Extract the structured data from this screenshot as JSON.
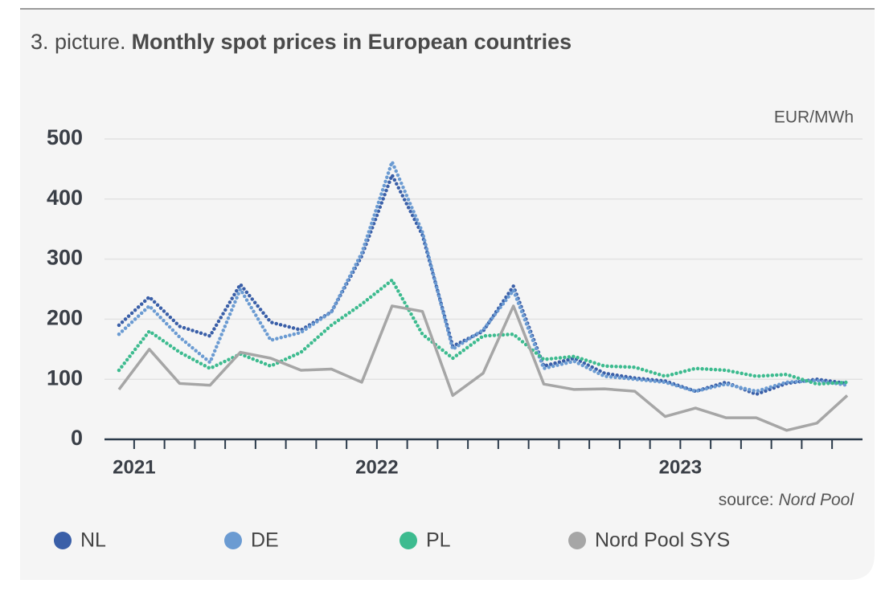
{
  "chart_data": {
    "type": "line",
    "label": "3. picture.",
    "title": "Monthly spot prices in European countries",
    "unit": "EUR/MWh",
    "source_label": "source:",
    "source": "Nord Pool",
    "categories": [
      null,
      null,
      null,
      null,
      null,
      null,
      null,
      null,
      null,
      null,
      null,
      null,
      null,
      null,
      null,
      null,
      null,
      null,
      null,
      null,
      null,
      null,
      null,
      null,
      null
    ],
    "xticks": [
      {
        "value": 0.5,
        "label": "2021"
      },
      {
        "value": 8.5,
        "label": "2022"
      },
      {
        "value": 18.5,
        "label": "2023"
      }
    ],
    "ylim": [
      0,
      500
    ],
    "yticks": [
      0,
      100,
      200,
      300,
      400,
      500
    ],
    "grid": true,
    "series": [
      {
        "name": "NL",
        "color": "#3a5fa8",
        "style": "dotted",
        "values": [
          190,
          237,
          188,
          172,
          258,
          195,
          182,
          212,
          305,
          440,
          340,
          155,
          180,
          255,
          122,
          135,
          110,
          102,
          97,
          80,
          95,
          75,
          93,
          100,
          93
        ]
      },
      {
        "name": "DE",
        "color": "#6b9bd2",
        "style": "dotted",
        "values": [
          175,
          222,
          170,
          128,
          250,
          165,
          178,
          212,
          310,
          462,
          345,
          150,
          182,
          248,
          118,
          130,
          105,
          100,
          95,
          80,
          92,
          80,
          95,
          98,
          90
        ]
      },
      {
        "name": "PL",
        "color": "#3dbb8f",
        "style": "dotted",
        "values": [
          115,
          180,
          145,
          118,
          142,
          122,
          145,
          190,
          225,
          265,
          175,
          135,
          172,
          175,
          133,
          138,
          122,
          120,
          105,
          118,
          115,
          105,
          108,
          92,
          95
        ]
      },
      {
        "name": "Nord Pool SYS",
        "color": "#a6a6a6",
        "style": "solid",
        "values": [
          83,
          150,
          93,
          90,
          145,
          135,
          115,
          117,
          95,
          222,
          213,
          73,
          110,
          222,
          92,
          83,
          84,
          80,
          38,
          52,
          36,
          36,
          15,
          27,
          73
        ]
      }
    ]
  }
}
